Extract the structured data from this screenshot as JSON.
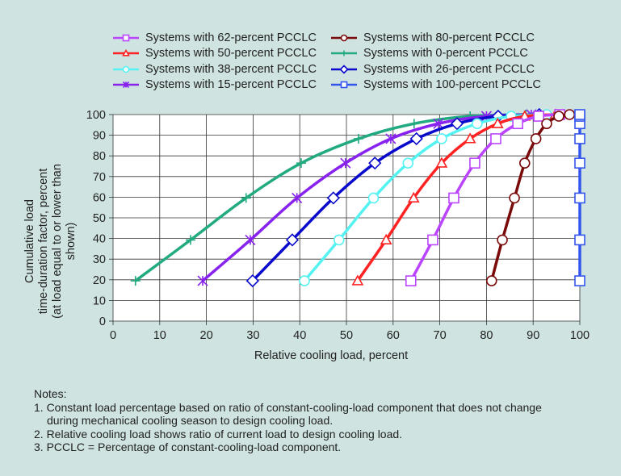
{
  "chart_data": {
    "type": "line",
    "title": "",
    "xlabel": "Relative cooling load, percent",
    "ylabel_lines": [
      "Cumulative load",
      "time-duration factor, percent",
      "(at load equal to or lower than shown)"
    ],
    "xlim": [
      0,
      100
    ],
    "ylim": [
      0,
      100
    ],
    "x_ticks": [
      "0",
      "10",
      "20",
      "30",
      "40",
      "50",
      "60",
      "70",
      "80",
      "90",
      "100"
    ],
    "y_ticks": [
      "0",
      "10",
      "20",
      "30",
      "40",
      "50",
      "60",
      "70",
      "80",
      "90",
      "100"
    ],
    "grid": true,
    "legend_position": "top",
    "y": [
      19.5,
      39.3,
      59.6,
      76.5,
      88.3,
      95.6,
      99.2,
      100
    ],
    "series": [
      {
        "name": "Systems with 62-percent PCCLC",
        "color": "#bb44ff",
        "marker": "square",
        "x": [
          63.8,
          68.5,
          73.0,
          77.5,
          82.0,
          86.7,
          91.2,
          95.7
        ]
      },
      {
        "name": "Systems with 50-percent PCCLC",
        "color": "#ff2222",
        "marker": "triangle",
        "x": [
          52.4,
          58.5,
          64.4,
          70.4,
          76.5,
          82.4,
          88.2,
          94.8
        ]
      },
      {
        "name": "Systems with 38-percent PCCLC",
        "color": "#55f2f2",
        "marker": "circle",
        "x": [
          41.0,
          48.4,
          55.8,
          63.2,
          70.4,
          78.0,
          85.3,
          92.9
        ]
      },
      {
        "name": "Systems with 15-percent PCCLC",
        "color": "#8822ee",
        "marker": "star",
        "x": [
          19.2,
          29.4,
          39.4,
          49.8,
          59.5,
          69.7,
          80.0,
          89.6
        ]
      },
      {
        "name": "Systems with 80-percent PCCLC",
        "color": "#7a0a0a",
        "marker": "circle",
        "x": [
          81.1,
          83.4,
          86.0,
          88.2,
          90.6,
          92.9,
          95.5,
          97.8
        ]
      },
      {
        "name": "Systems with 0-percent PCCLC",
        "color": "#22aa80",
        "marker": "plus",
        "x": [
          4.8,
          16.6,
          28.5,
          40.3,
          52.6,
          64.5,
          76.5,
          88.4
        ]
      },
      {
        "name": "Systems with 26-percent PCCLC",
        "color": "#0a0acc",
        "marker": "diamond",
        "x": [
          29.9,
          38.4,
          47.2,
          56.1,
          65.0,
          73.7,
          82.5,
          91.3
        ]
      },
      {
        "name": "Systems with 100-percent PCCLC",
        "color": "#3355ee",
        "marker": "square",
        "x": [
          100,
          100,
          100,
          100,
          100,
          100,
          100,
          100
        ]
      }
    ]
  },
  "notes": {
    "heading": "Notes:",
    "n1a": "1. Constant load percentage based on ratio of constant-cooling-load component that does not change",
    "n1b": "during mechanical cooling season to design cooling load.",
    "n2": "2. Relative cooling load shows ratio of current load to design cooling load.",
    "n3": "3. PCCLC = Percentage of constant-cooling-load component."
  }
}
